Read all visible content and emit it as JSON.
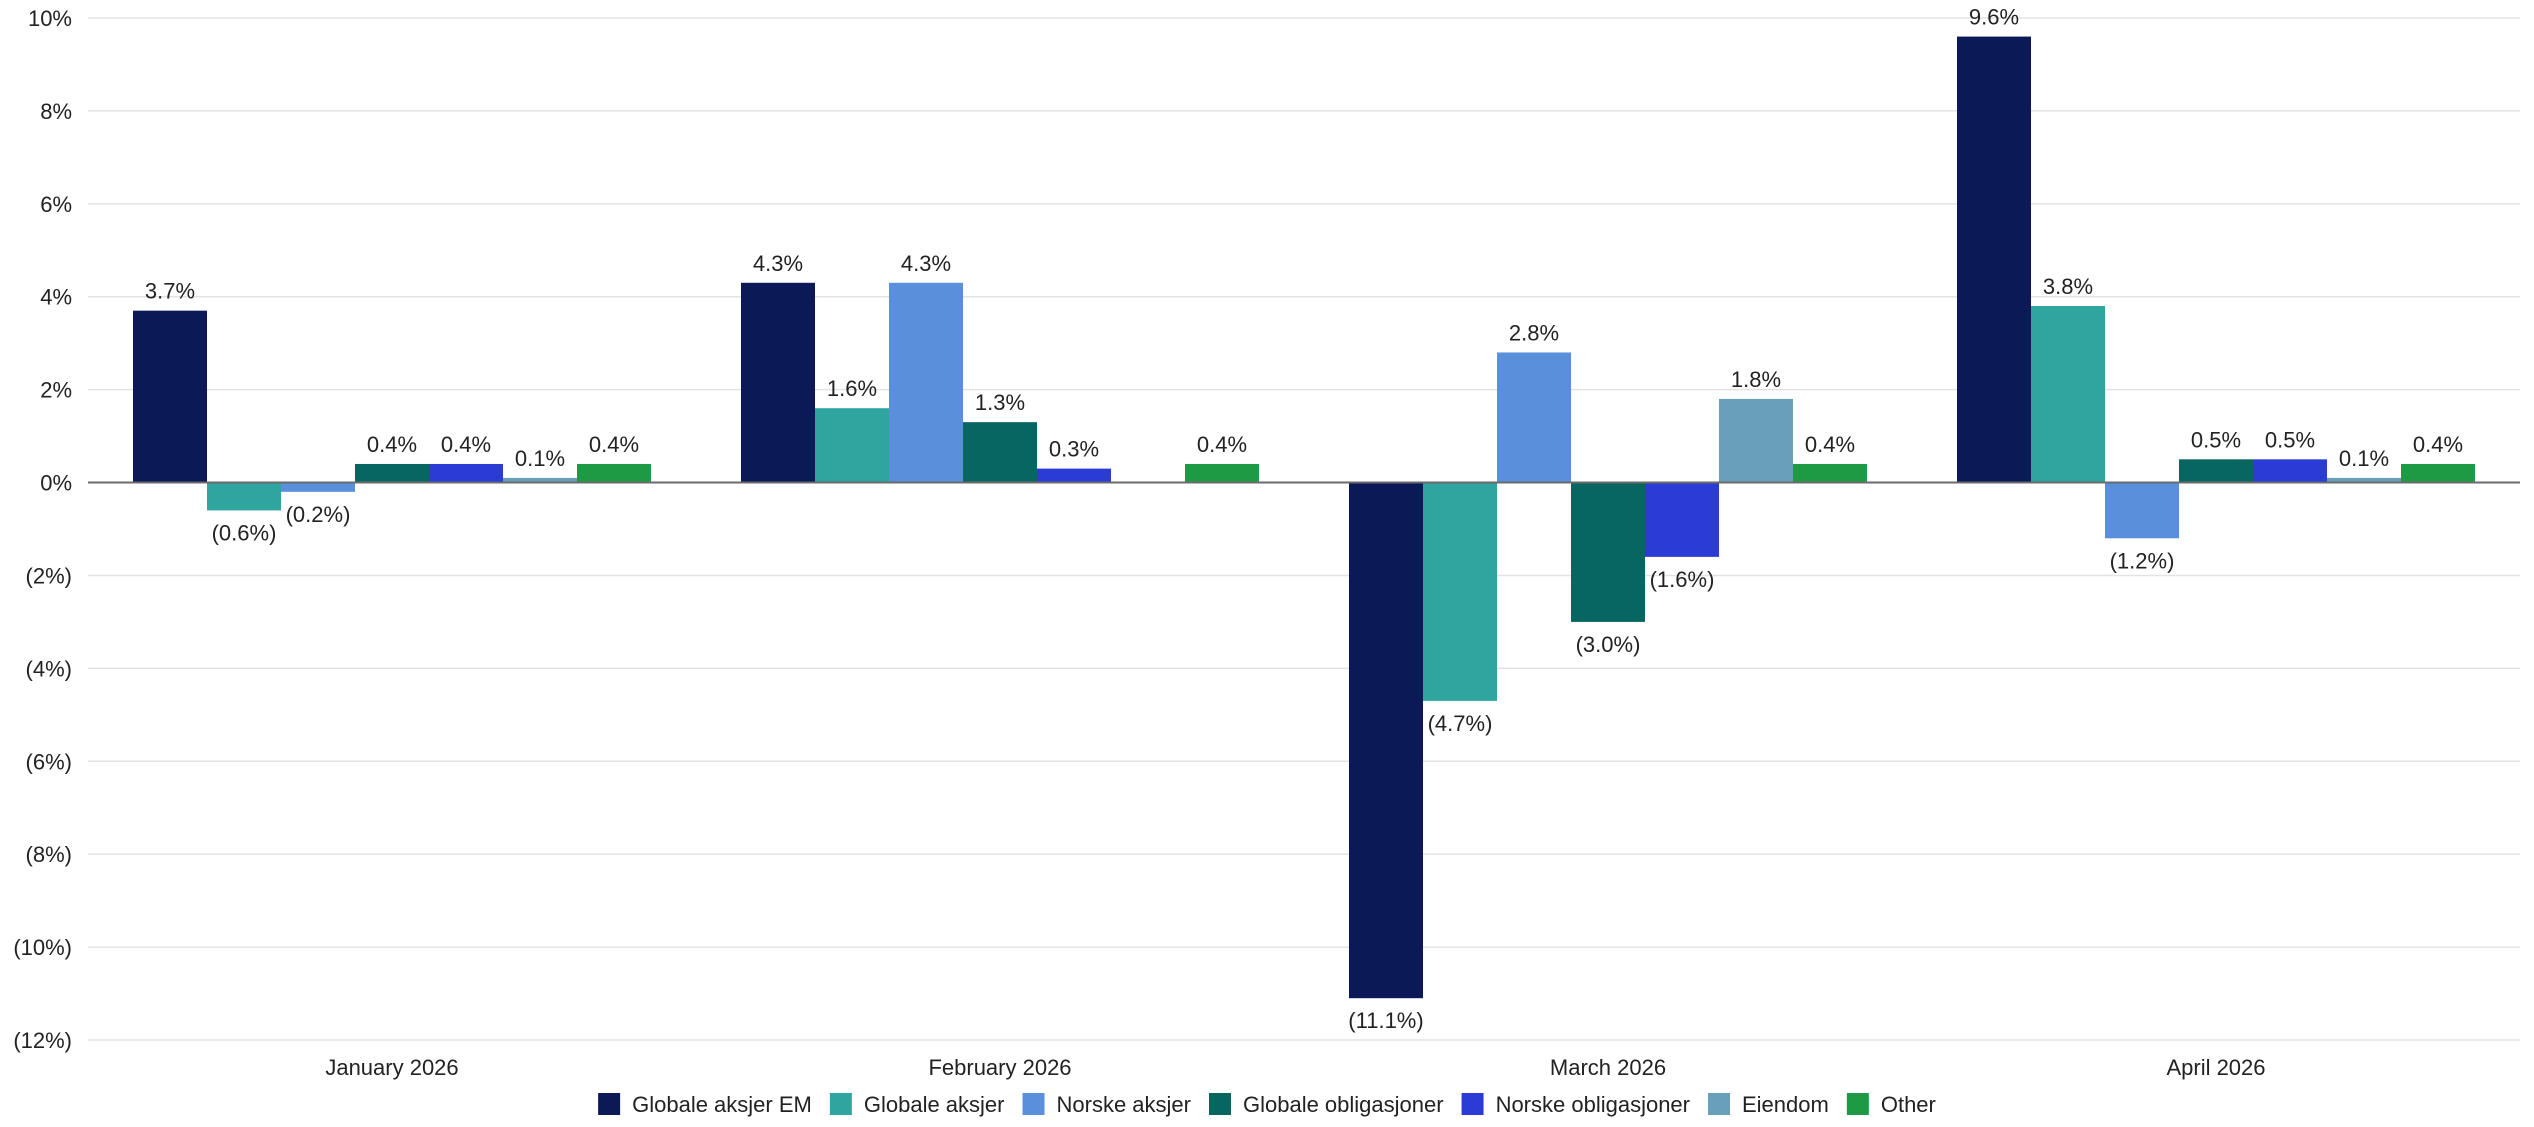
{
  "chart_data": {
    "type": "bar",
    "categories": [
      "January 2026",
      "February 2026",
      "March 2026",
      "April 2026"
    ],
    "series": [
      {
        "name": "Globale aksjer EM",
        "color": "#0b1957",
        "values": [
          3.7,
          4.3,
          -11.1,
          9.6
        ],
        "labels": [
          "3.7%",
          "4.3%",
          "(11.1%)",
          "9.6%"
        ]
      },
      {
        "name": "Globale aksjer",
        "color": "#2fa5a0",
        "values": [
          -0.6,
          1.6,
          -4.7,
          3.8
        ],
        "labels": [
          "(0.6%)",
          "1.6%",
          "(4.7%)",
          "3.8%"
        ]
      },
      {
        "name": "Norske aksjer",
        "color": "#5a8fdc",
        "values": [
          -0.2,
          4.3,
          2.8,
          -1.2
        ],
        "labels": [
          "(0.2%)",
          "4.3%",
          "2.8%",
          "(1.2%)"
        ]
      },
      {
        "name": "Globale obligasjoner",
        "color": "#086660",
        "values": [
          0.4,
          1.3,
          -3.0,
          0.5
        ],
        "labels": [
          "0.4%",
          "1.3%",
          "(3.0%)",
          "0.5%"
        ]
      },
      {
        "name": "Norske obligasjoner",
        "color": "#2b3bd6",
        "values": [
          0.4,
          0.3,
          -1.6,
          0.5
        ],
        "labels": [
          "0.4%",
          "0.3%",
          "(1.6%)",
          "0.5%"
        ]
      },
      {
        "name": "Eiendom",
        "color": "#6a9fba",
        "values": [
          0.1,
          0.0,
          1.8,
          0.1
        ],
        "labels": [
          "0.1%",
          "",
          "1.8%",
          "0.1%"
        ]
      },
      {
        "name": "Other",
        "color": "#1e9a45",
        "values": [
          0.4,
          0.4,
          0.4,
          0.4
        ],
        "labels": [
          "0.4%",
          "0.4%",
          "0.4%",
          "0.4%"
        ]
      }
    ],
    "yticks": [
      10,
      8,
      6,
      4,
      2,
      0,
      -2,
      -4,
      -6,
      -8,
      -10,
      -12
    ],
    "ytick_labels": [
      "10%",
      "8%",
      "6%",
      "4%",
      "2%",
      "0%",
      "(2%)",
      "(4%)",
      "(6%)",
      "(8%)",
      "(10%)",
      "(12%)"
    ],
    "ylim": [
      -12,
      10
    ],
    "grid": true,
    "legend_position": "bottom-center",
    "title": "",
    "xlabel": "",
    "ylabel": ""
  }
}
